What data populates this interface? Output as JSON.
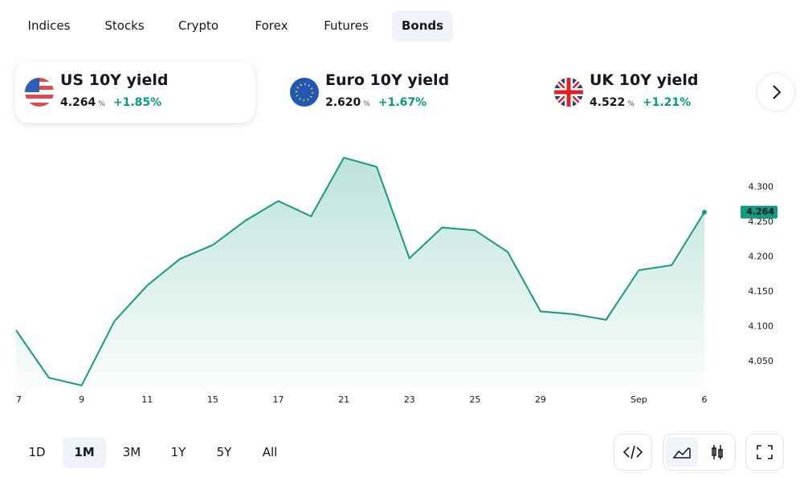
{
  "tabs": {
    "items": [
      "Indices",
      "Stocks",
      "Crypto",
      "Forex",
      "Futures",
      "Bonds"
    ],
    "active": 5
  },
  "cards": [
    {
      "title": "US 10Y yield",
      "value": "4.264",
      "unit": "%",
      "change": "+1.85%"
    },
    {
      "title": "Euro 10Y yield",
      "value": "2.620",
      "unit": "%",
      "change": "+1.67%"
    },
    {
      "title": "UK 10Y yield",
      "value": "4.522",
      "unit": "%",
      "change": "+1.21%"
    }
  ],
  "chart_data": {
    "type": "line",
    "categories": [
      "7",
      null,
      "9",
      null,
      "11",
      null,
      "15",
      null,
      "17",
      null,
      "21",
      null,
      "23",
      null,
      "25",
      null,
      "29",
      null,
      null,
      "Sep",
      null,
      "6"
    ],
    "series": [
      {
        "color": "#139a80",
        "values": [
          4.095,
          4.027,
          4.016,
          4.108,
          4.159,
          4.197,
          4.217,
          4.252,
          4.28,
          4.258,
          4.342,
          4.329,
          4.198,
          4.242,
          4.238,
          4.207,
          4.122,
          4.118,
          4.11,
          4.181,
          4.188,
          4.264
        ]
      }
    ],
    "ylim": [
      4.01,
      4.36
    ],
    "yticks": [
      {
        "value": 4.05,
        "label": "4.050"
      },
      {
        "value": 4.1,
        "label": "4.100"
      },
      {
        "value": 4.15,
        "label": "4.150"
      },
      {
        "value": 4.2,
        "label": "4.200"
      },
      {
        "value": 4.25,
        "label": "4.250"
      },
      {
        "value": 4.3,
        "label": "4.300"
      }
    ],
    "grid": false
  },
  "ranges": {
    "items": [
      "1D",
      "1M",
      "3M",
      "1Y",
      "5Y",
      "All"
    ],
    "active": 1
  }
}
